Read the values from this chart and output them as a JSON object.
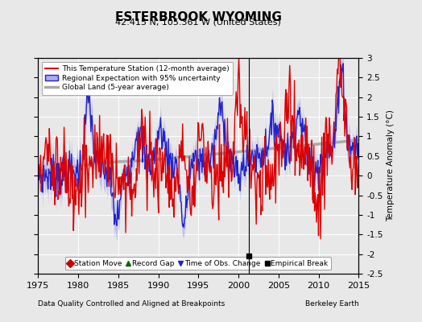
{
  "title": "ESTERBROOK WYOMING",
  "subtitle": "42.415 N, 105.361 W (United States)",
  "xlabel_left": "Data Quality Controlled and Aligned at Breakpoints",
  "xlabel_right": "Berkeley Earth",
  "ylabel": "Temperature Anomaly (°C)",
  "xlim": [
    1975,
    2015
  ],
  "ylim": [
    -2.5,
    3.0
  ],
  "yticks": [
    -2.5,
    -2,
    -1.5,
    -1,
    -0.5,
    0,
    0.5,
    1,
    1.5,
    2,
    2.5,
    3
  ],
  "xticks": [
    1975,
    1980,
    1985,
    1990,
    1995,
    2000,
    2005,
    2010,
    2015
  ],
  "bg_color": "#e8e8e8",
  "grid_color": "#ffffff",
  "station_color": "#dd0000",
  "regional_color": "#2222cc",
  "regional_fill": "#aaaaee",
  "global_color": "#aaaaaa",
  "legend2_items": [
    {
      "label": "Station Move",
      "marker": "D",
      "color": "#cc0000"
    },
    {
      "label": "Record Gap",
      "marker": "^",
      "color": "#006600"
    },
    {
      "label": "Time of Obs. Change",
      "marker": "v",
      "color": "#2222cc"
    },
    {
      "label": "Empirical Break",
      "marker": "s",
      "color": "black"
    }
  ],
  "empirical_break_x": 2001.25,
  "empirical_break_y": -2.05
}
